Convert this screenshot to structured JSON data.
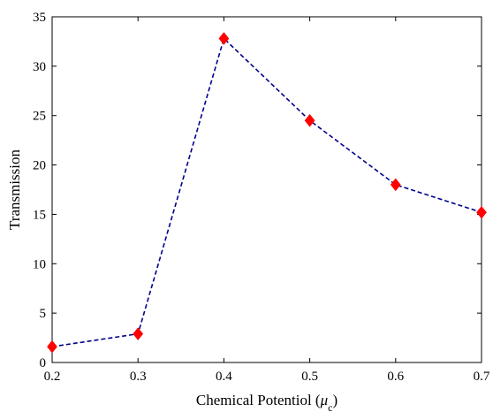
{
  "chart_data": {
    "type": "line",
    "x": [
      0.2,
      0.3,
      0.4,
      0.5,
      0.6,
      0.7
    ],
    "series": [
      {
        "values": [
          1.6,
          2.9,
          32.8,
          24.5,
          18.0,
          15.2
        ]
      }
    ],
    "xlabel": "Chemical Potentiol (",
    "xlabel_symbol": "μ",
    "xlabel_subscript": "c",
    "xlabel_close": ")",
    "ylabel": "Transmission",
    "xlim": [
      0.2,
      0.7
    ],
    "ylim": [
      0,
      35
    ],
    "xticks": [
      "0.2",
      "0.3",
      "0.4",
      "0.5",
      "0.6",
      "0.7"
    ],
    "yticks": [
      "0",
      "5",
      "10",
      "15",
      "20",
      "25",
      "30",
      "35"
    ],
    "grid": false,
    "line_color": "#00008b",
    "marker_color": "#ff0000",
    "line_style": "dashed",
    "marker": "diamond"
  }
}
